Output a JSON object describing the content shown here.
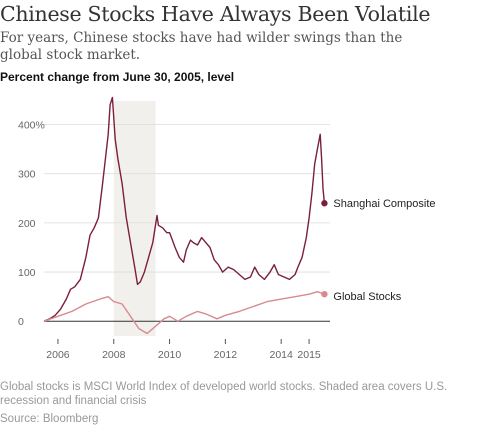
{
  "header": {
    "title": "Chinese Stocks Have Always Been Volatile",
    "subtitle": "For years, Chinese stocks have had wilder swings than the global stock market.",
    "chart_label": "Percent change from June 30, 2005, level"
  },
  "footer": {
    "note": "Global stocks is MSCI World Index of developed world stocks. Shaded area covers U.S. recession and financial crisis",
    "source": "Source: Bloomberg"
  },
  "chart_data": {
    "type": "line",
    "title": "Chinese Stocks Have Always Been Volatile",
    "subtitle": "For years, Chinese stocks have had wilder swings than the global stock market.",
    "ylabel": "Percent change from June 30, 2005, level",
    "xlim": [
      2005.5,
      2015.75
    ],
    "ylim": [
      -30,
      460
    ],
    "y_ticks": [
      0,
      100,
      200,
      300,
      400
    ],
    "y_tick_labels": [
      "0",
      "100",
      "200",
      "300",
      "400%"
    ],
    "x_ticks": [
      2006,
      2008,
      2010,
      2012,
      2014,
      2015
    ],
    "x_tick_labels": [
      "2006",
      "2008",
      "2010",
      "2012",
      "2014",
      "2015"
    ],
    "grid": true,
    "shaded_region": {
      "x": [
        2008.0,
        2009.5
      ],
      "color": "#f2f0ec"
    },
    "series": [
      {
        "name": "Shanghai Composite",
        "color": "#7a1f3d",
        "end_marker": true,
        "x": [
          2005.5,
          2005.7,
          2005.9,
          2006.1,
          2006.3,
          2006.45,
          2006.6,
          2006.8,
          2007.0,
          2007.15,
          2007.3,
          2007.45,
          2007.6,
          2007.7,
          2007.8,
          2007.87,
          2007.95,
          2008.05,
          2008.15,
          2008.3,
          2008.45,
          2008.6,
          2008.75,
          2008.85,
          2008.95,
          2009.1,
          2009.25,
          2009.4,
          2009.55,
          2009.6,
          2009.75,
          2009.9,
          2010.0,
          2010.1,
          2010.2,
          2010.35,
          2010.5,
          2010.6,
          2010.75,
          2010.85,
          2011.0,
          2011.15,
          2011.3,
          2011.45,
          2011.6,
          2011.75,
          2011.9,
          2012.1,
          2012.3,
          2012.5,
          2012.7,
          2012.9,
          2013.05,
          2013.2,
          2013.4,
          2013.6,
          2013.75,
          2013.9,
          2014.1,
          2014.3,
          2014.5,
          2014.6,
          2014.75,
          2014.9,
          2015.0,
          2015.1,
          2015.2,
          2015.3,
          2015.4,
          2015.45,
          2015.5,
          2015.55
        ],
        "values": [
          0,
          5,
          12,
          25,
          45,
          65,
          70,
          85,
          130,
          175,
          190,
          210,
          280,
          330,
          380,
          440,
          455,
          370,
          330,
          280,
          210,
          160,
          110,
          75,
          80,
          100,
          130,
          160,
          215,
          195,
          190,
          180,
          180,
          165,
          150,
          130,
          120,
          145,
          165,
          160,
          155,
          170,
          160,
          150,
          125,
          115,
          100,
          110,
          105,
          95,
          85,
          90,
          110,
          95,
          85,
          100,
          115,
          95,
          90,
          85,
          95,
          110,
          130,
          170,
          210,
          260,
          320,
          350,
          380,
          330,
          270,
          240
        ]
      },
      {
        "name": "Global Stocks",
        "color": "#d98a8f",
        "end_marker": true,
        "x": [
          2005.5,
          2006.0,
          2006.5,
          2007.0,
          2007.5,
          2007.8,
          2008.0,
          2008.3,
          2008.6,
          2008.9,
          2009.2,
          2009.5,
          2009.8,
          2010.0,
          2010.3,
          2010.6,
          2011.0,
          2011.3,
          2011.7,
          2012.0,
          2012.5,
          2013.0,
          2013.5,
          2014.0,
          2014.5,
          2015.0,
          2015.3,
          2015.55
        ],
        "values": [
          0,
          10,
          20,
          35,
          45,
          50,
          40,
          35,
          10,
          -15,
          -25,
          -10,
          5,
          10,
          0,
          10,
          20,
          15,
          5,
          12,
          20,
          30,
          40,
          45,
          50,
          55,
          60,
          55
        ]
      }
    ],
    "annotations": [
      "Shanghai Composite",
      "Global Stocks"
    ]
  }
}
